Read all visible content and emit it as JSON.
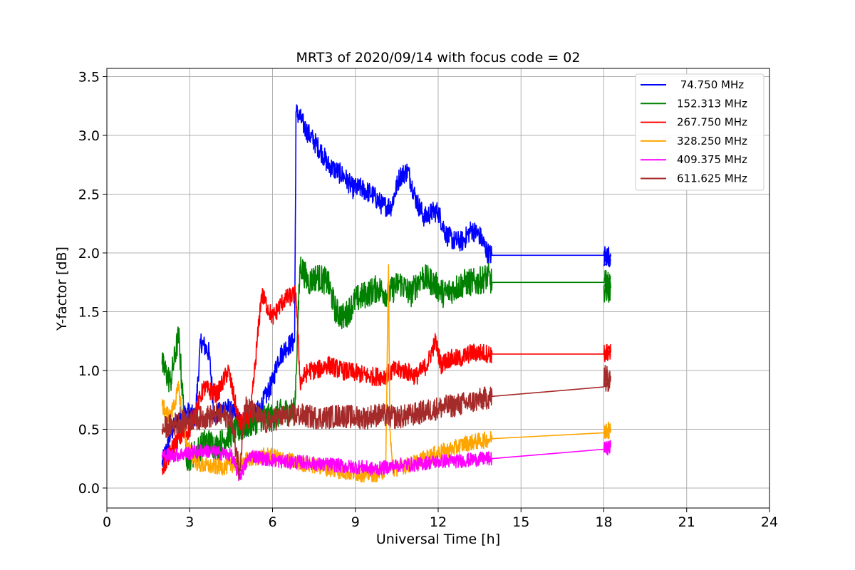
{
  "chart_data": {
    "type": "line",
    "title": "MRT3 of 2020/09/14 with focus code = 02",
    "xlabel": "Universal Time [h]",
    "ylabel": "Y-factor [dB]",
    "xlim": [
      0,
      24
    ],
    "ylim": [
      -0.17,
      3.57
    ],
    "xticks": [
      0,
      3,
      6,
      9,
      12,
      15,
      18,
      21,
      24
    ],
    "xtick_labels": [
      "0",
      "3",
      "6",
      "9",
      "12",
      "15",
      "18",
      "21",
      "24"
    ],
    "yticks": [
      0.0,
      0.5,
      1.0,
      1.5,
      2.0,
      2.5,
      3.0,
      3.5
    ],
    "ytick_labels": [
      "0.0",
      "0.5",
      "1.0",
      "1.5",
      "2.0",
      "2.5",
      "3.0",
      "3.5"
    ],
    "grid": true,
    "legend_position": "top-right",
    "series": [
      {
        "name": " 74.750 MHz",
        "color": "#0000ff",
        "noise": 0.09,
        "x": [
          2.0,
          2.3,
          2.6,
          2.9,
          3.2,
          3.4,
          3.7,
          3.9,
          4.3,
          4.7,
          5.0,
          5.3,
          5.6,
          5.8,
          6.0,
          6.2,
          6.5,
          6.8,
          6.85,
          7.0,
          7.2,
          7.5,
          7.8,
          8.0,
          8.3,
          8.6,
          8.9,
          9.2,
          9.6,
          10.0,
          10.3,
          10.6,
          10.9,
          11.2,
          11.5,
          11.8,
          12.0,
          12.3,
          12.6,
          12.9,
          13.2,
          13.5,
          13.8,
          13.95,
          18.0,
          18.25
        ],
        "y": [
          0.2,
          0.45,
          0.6,
          0.65,
          0.6,
          1.25,
          1.15,
          0.6,
          0.7,
          0.6,
          0.5,
          0.6,
          0.7,
          0.8,
          0.9,
          1.1,
          1.2,
          1.25,
          3.2,
          3.15,
          3.05,
          2.95,
          2.85,
          2.75,
          2.7,
          2.65,
          2.55,
          2.55,
          2.5,
          2.4,
          2.4,
          2.65,
          2.7,
          2.45,
          2.3,
          2.35,
          2.35,
          2.15,
          2.1,
          2.1,
          2.2,
          2.15,
          2.0,
          1.98,
          1.98,
          1.97
        ]
      },
      {
        "name": "152.313 MHz",
        "color": "#008000",
        "noise": 0.12,
        "x": [
          2.0,
          2.3,
          2.6,
          2.9,
          3.2,
          3.6,
          4.0,
          4.4,
          4.8,
          5.2,
          5.6,
          6.0,
          6.4,
          6.8,
          7.0,
          7.3,
          7.6,
          8.0,
          8.3,
          8.6,
          9.0,
          9.4,
          9.8,
          10.2,
          10.6,
          11.0,
          11.4,
          11.8,
          12.2,
          12.6,
          13.0,
          13.4,
          13.8,
          13.95,
          18.0,
          18.25
        ],
        "y": [
          1.05,
          0.9,
          1.3,
          0.25,
          0.3,
          0.4,
          0.35,
          0.45,
          0.5,
          0.55,
          0.6,
          0.6,
          0.65,
          0.65,
          1.9,
          1.75,
          1.8,
          1.75,
          1.5,
          1.45,
          1.6,
          1.65,
          1.7,
          1.65,
          1.75,
          1.65,
          1.8,
          1.75,
          1.65,
          1.7,
          1.75,
          1.75,
          1.8,
          1.75,
          1.75,
          1.7
        ]
      },
      {
        "name": "267.750 MHz",
        "color": "#ff0000",
        "noise": 0.08,
        "x": [
          2.0,
          2.5,
          3.0,
          3.5,
          4.0,
          4.4,
          4.8,
          5.2,
          5.6,
          6.0,
          6.4,
          6.85,
          7.0,
          7.3,
          7.6,
          8.0,
          8.5,
          9.0,
          9.5,
          10.0,
          10.4,
          10.8,
          11.2,
          11.6,
          11.9,
          12.1,
          12.4,
          12.8,
          13.2,
          13.6,
          13.95,
          18.0,
          18.25
        ],
        "y": [
          0.15,
          0.4,
          0.5,
          0.85,
          0.8,
          1.0,
          0.55,
          0.6,
          1.65,
          1.45,
          1.6,
          1.65,
          0.9,
          1.0,
          1.0,
          1.05,
          1.0,
          0.98,
          0.95,
          0.95,
          1.0,
          1.0,
          0.95,
          1.05,
          1.25,
          1.05,
          1.1,
          1.1,
          1.15,
          1.15,
          1.14,
          1.14,
          1.15
        ]
      },
      {
        "name": "328.250 MHz",
        "color": "#ffa500",
        "noise": 0.07,
        "x": [
          2.0,
          2.3,
          2.6,
          2.9,
          3.3,
          3.8,
          4.3,
          4.8,
          5.3,
          5.8,
          6.3,
          6.8,
          7.3,
          7.8,
          8.3,
          8.8,
          9.3,
          9.8,
          10.1,
          10.2,
          10.25,
          10.35,
          10.6,
          11.0,
          11.5,
          12.0,
          12.5,
          13.0,
          13.5,
          13.95,
          18.0,
          18.25
        ],
        "y": [
          0.7,
          0.6,
          0.85,
          0.35,
          0.2,
          0.18,
          0.18,
          0.22,
          0.25,
          0.28,
          0.25,
          0.22,
          0.2,
          0.18,
          0.15,
          0.13,
          0.12,
          0.12,
          0.15,
          1.9,
          0.5,
          0.15,
          0.18,
          0.2,
          0.25,
          0.3,
          0.33,
          0.38,
          0.4,
          0.42,
          0.47,
          0.5
        ]
      },
      {
        "name": "409.375 MHz",
        "color": "#ff00ff",
        "noise": 0.06,
        "x": [
          2.0,
          2.5,
          3.0,
          3.5,
          4.0,
          4.5,
          4.8,
          5.2,
          5.7,
          6.2,
          6.7,
          7.2,
          7.7,
          8.2,
          8.7,
          9.2,
          9.7,
          10.2,
          10.7,
          11.2,
          11.7,
          12.2,
          12.7,
          13.2,
          13.7,
          13.95,
          18.0,
          18.25
        ],
        "y": [
          0.28,
          0.28,
          0.3,
          0.32,
          0.3,
          0.28,
          0.1,
          0.28,
          0.25,
          0.23,
          0.22,
          0.22,
          0.2,
          0.2,
          0.18,
          0.18,
          0.16,
          0.18,
          0.2,
          0.2,
          0.22,
          0.23,
          0.23,
          0.24,
          0.25,
          0.25,
          0.33,
          0.35
        ]
      },
      {
        "name": "611.625 MHz",
        "color": "#a52a2a",
        "noise": 0.1,
        "x": [
          2.0,
          2.5,
          3.0,
          3.5,
          4.0,
          4.5,
          4.8,
          5.0,
          5.4,
          5.8,
          6.2,
          6.6,
          7.0,
          7.5,
          8.0,
          8.5,
          9.0,
          9.5,
          9.6,
          10.0,
          10.5,
          11.0,
          11.5,
          12.0,
          12.5,
          13.0,
          13.5,
          13.95,
          18.0,
          18.25
        ],
        "y": [
          0.5,
          0.55,
          0.58,
          0.6,
          0.62,
          0.6,
          0.15,
          0.7,
          0.62,
          0.55,
          0.6,
          0.62,
          0.62,
          0.6,
          0.6,
          0.62,
          0.6,
          0.6,
          0.62,
          0.62,
          0.6,
          0.62,
          0.65,
          0.68,
          0.7,
          0.72,
          0.75,
          0.78,
          0.86,
          0.95
        ]
      }
    ]
  }
}
